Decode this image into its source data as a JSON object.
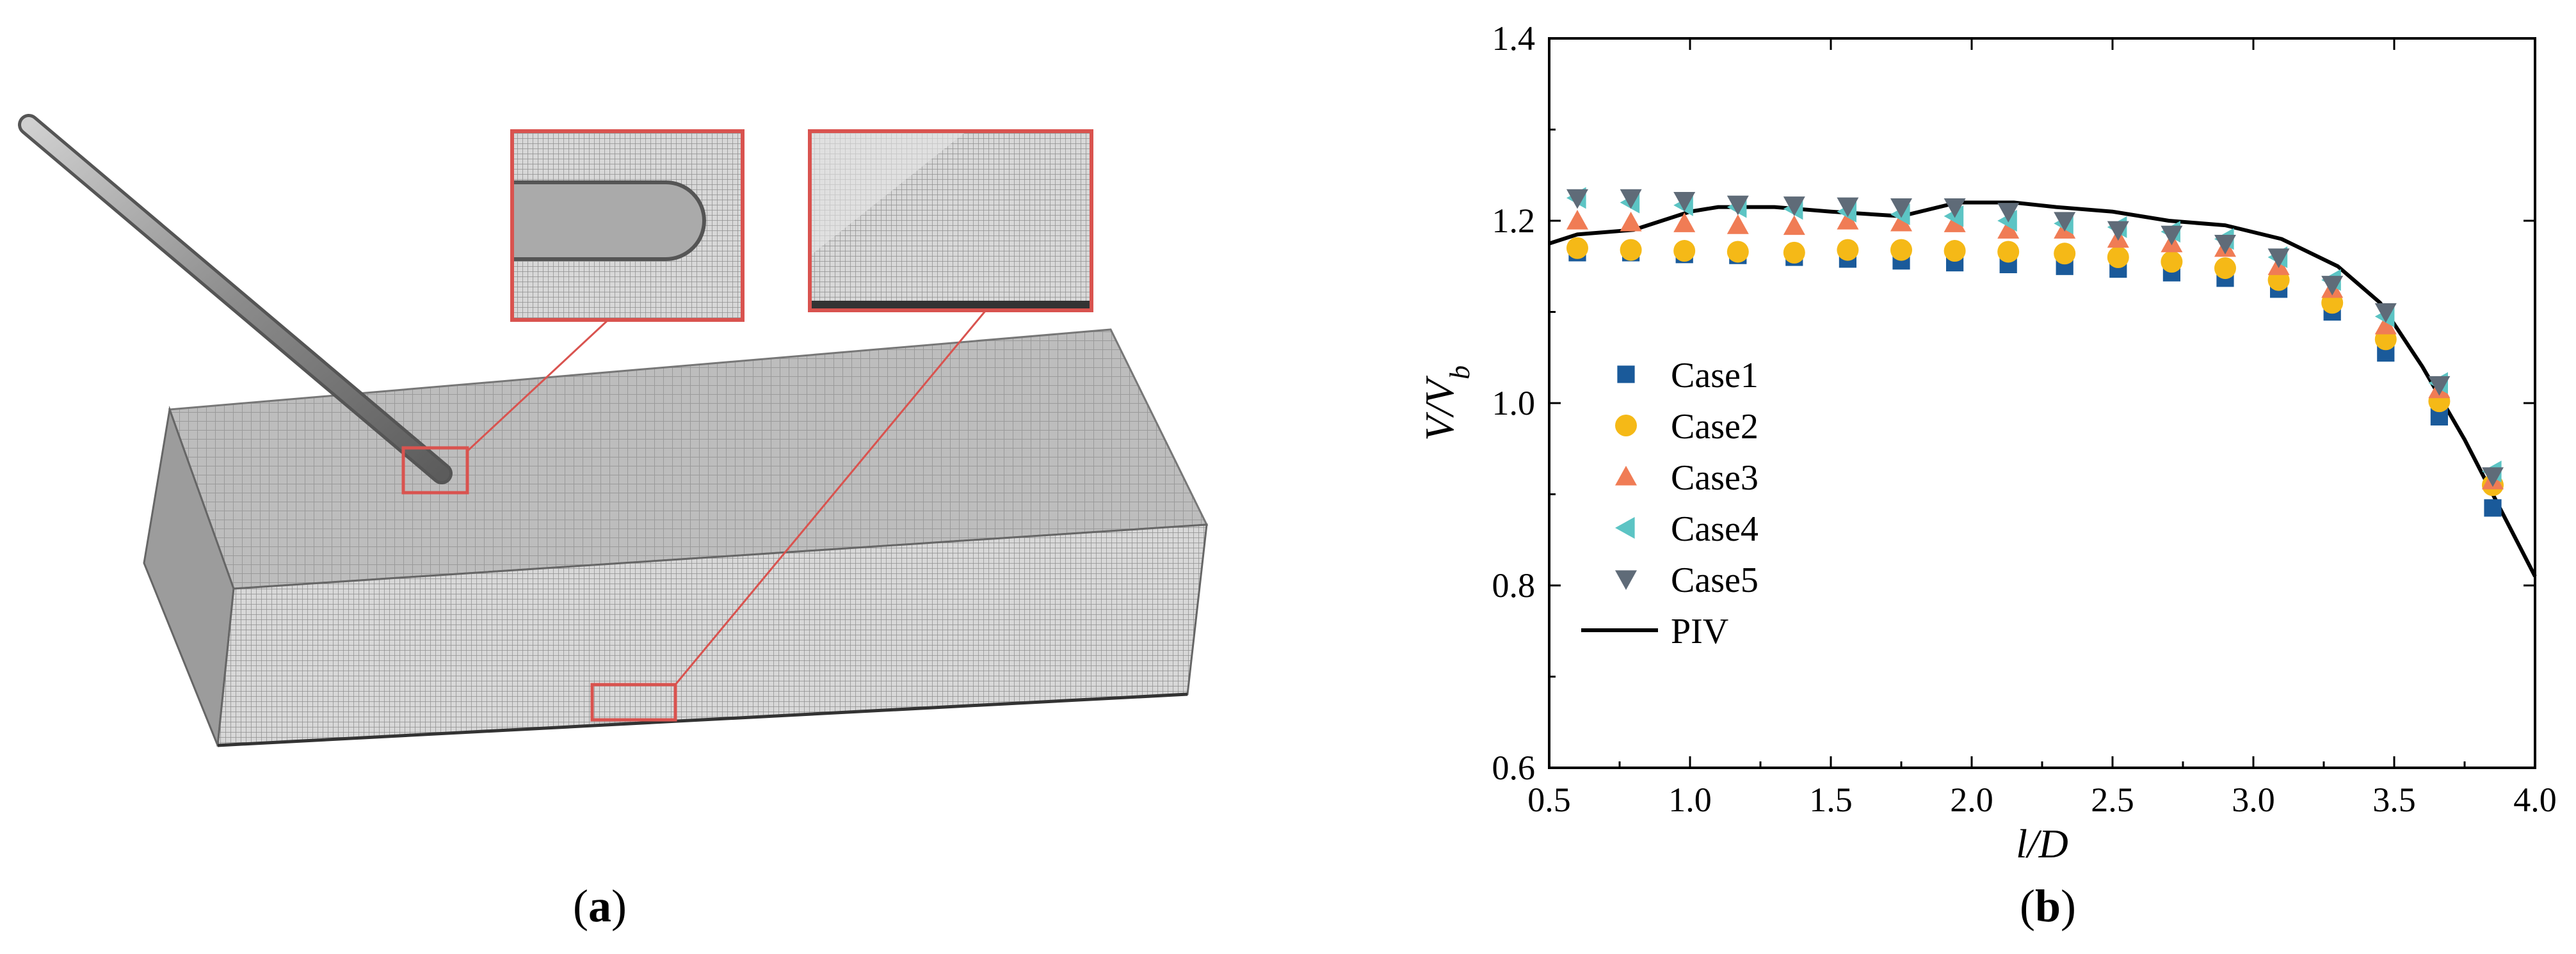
{
  "panels": {
    "a_label": "a",
    "b_label": "b"
  },
  "colors": {
    "case1": "#1a5a9a",
    "case2": "#f5b917",
    "case3": "#f07c55",
    "case4": "#5cc4c4",
    "case5": "#5f6b78",
    "piv": "#000000",
    "zoom_box": "#d9534f",
    "mesh_fill": "#bdbdbd"
  },
  "chart_data": {
    "type": "scatter",
    "xlabel": "l/D",
    "ylabel": "V/V_b",
    "xlim": [
      0.5,
      4.0
    ],
    "ylim": [
      0.6,
      1.4
    ],
    "xticks": [
      "0.5",
      "1.0",
      "1.5",
      "2.0",
      "2.5",
      "3.0",
      "3.5",
      "4.0"
    ],
    "yticks": [
      "0.6",
      "0.8",
      "1.0",
      "1.2",
      "1.4"
    ],
    "x": [
      0.6,
      0.79,
      0.98,
      1.17,
      1.37,
      1.56,
      1.75,
      1.94,
      2.13,
      2.33,
      2.52,
      2.71,
      2.9,
      3.09,
      3.28,
      3.47,
      3.66,
      3.85
    ],
    "legend_position": "center-left",
    "series": [
      {
        "name": "Case1",
        "marker": "square",
        "values": [
          1.165,
          1.165,
          1.163,
          1.162,
          1.16,
          1.158,
          1.156,
          1.154,
          1.152,
          1.15,
          1.147,
          1.143,
          1.137,
          1.125,
          1.1,
          1.055,
          0.985,
          0.885
        ]
      },
      {
        "name": "Case2",
        "marker": "circle",
        "values": [
          1.17,
          1.168,
          1.167,
          1.166,
          1.165,
          1.168,
          1.168,
          1.167,
          1.166,
          1.164,
          1.16,
          1.155,
          1.148,
          1.135,
          1.11,
          1.07,
          1.002,
          0.91
        ]
      },
      {
        "name": "Case3",
        "marker": "triangle-up",
        "values": [
          1.2,
          1.198,
          1.197,
          1.195,
          1.194,
          1.2,
          1.198,
          1.197,
          1.19,
          1.19,
          1.18,
          1.175,
          1.17,
          1.15,
          1.125,
          1.085,
          1.015,
          0.915
        ]
      },
      {
        "name": "Case4",
        "marker": "triangle-left",
        "values": [
          1.225,
          1.22,
          1.217,
          1.215,
          1.213,
          1.21,
          1.207,
          1.205,
          1.2,
          1.197,
          1.193,
          1.188,
          1.18,
          1.16,
          1.135,
          1.095,
          1.022,
          0.925
        ]
      },
      {
        "name": "Case5",
        "marker": "triangle-down",
        "values": [
          1.225,
          1.225,
          1.222,
          1.218,
          1.217,
          1.216,
          1.215,
          1.215,
          1.21,
          1.2,
          1.19,
          1.185,
          1.175,
          1.16,
          1.13,
          1.1,
          1.02,
          0.92
        ]
      }
    ],
    "line": {
      "name": "PIV",
      "x": [
        0.5,
        0.6,
        0.8,
        1.0,
        1.1,
        1.3,
        1.5,
        1.75,
        1.95,
        2.15,
        2.3,
        2.5,
        2.7,
        2.9,
        3.1,
        3.3,
        3.45,
        3.6,
        3.75,
        3.9,
        4.0
      ],
      "y": [
        1.175,
        1.185,
        1.19,
        1.21,
        1.215,
        1.215,
        1.21,
        1.205,
        1.22,
        1.22,
        1.215,
        1.21,
        1.2,
        1.195,
        1.18,
        1.15,
        1.11,
        1.04,
        0.96,
        0.87,
        0.81
      ]
    }
  }
}
